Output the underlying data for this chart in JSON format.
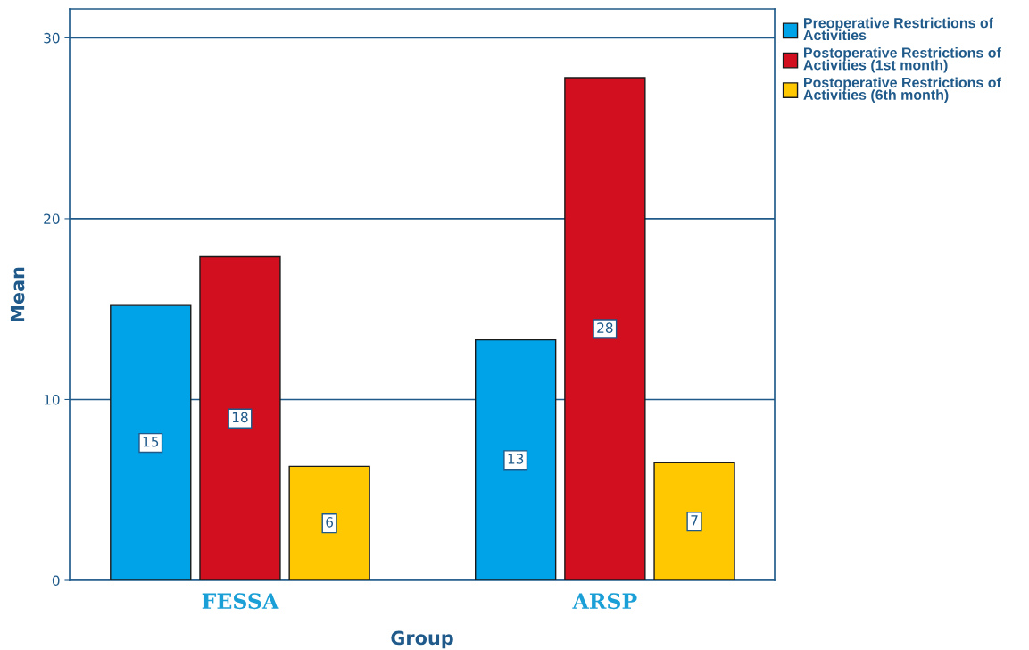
{
  "chart_data": {
    "type": "bar",
    "xlabel": "Group",
    "ylabel": "Mean",
    "categories": [
      "FESSA",
      "ARSP"
    ],
    "series": [
      {
        "name": "Preoperative Restrictions of Activities",
        "color": "#00a2e8",
        "values": [
          15.2,
          13.3
        ],
        "value_labels": [
          "15",
          "13"
        ]
      },
      {
        "name": "Postoperative Restrictions of Activities (1st month)",
        "color": "#d20f1e",
        "values": [
          17.9,
          27.8
        ],
        "value_labels": [
          "18",
          "28"
        ]
      },
      {
        "name": "Postoperative Restrictions of Activities (6th month)",
        "color": "#ffc800",
        "values": [
          6.3,
          6.5
        ],
        "value_labels": [
          "6",
          "7"
        ]
      }
    ],
    "ylim": [
      0,
      31.6
    ],
    "yticks": [
      0,
      10,
      20,
      30
    ],
    "grid": "y",
    "legend": "top right"
  }
}
